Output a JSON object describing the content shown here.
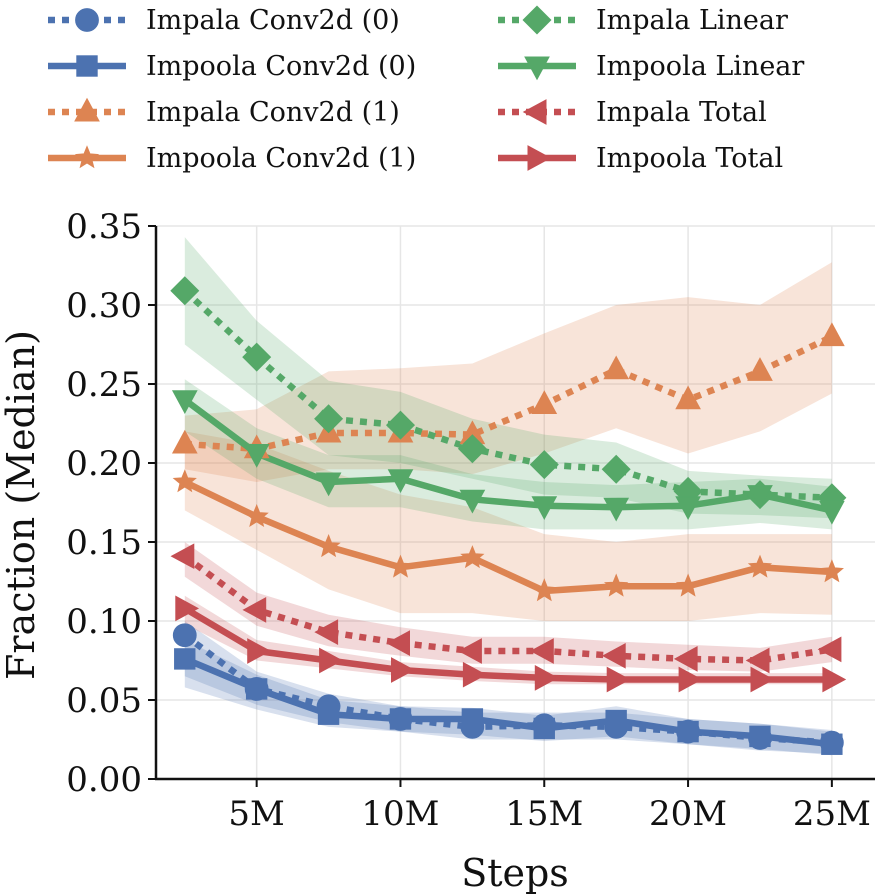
{
  "chart_data": {
    "type": "line",
    "title": "",
    "xlabel": "Steps",
    "ylabel": "Fraction (Median)",
    "xlim": [
      1.5,
      26.5
    ],
    "ylim": [
      0.0,
      0.35
    ],
    "x_ticks": [
      5,
      10,
      15,
      20,
      25
    ],
    "x_tick_labels": [
      "5M",
      "10M",
      "15M",
      "20M",
      "25M"
    ],
    "y_ticks": [
      0.0,
      0.05,
      0.1,
      0.15,
      0.2,
      0.25,
      0.3,
      0.35
    ],
    "y_tick_labels": [
      "0.00",
      "0.05",
      "0.10",
      "0.15",
      "0.20",
      "0.25",
      "0.30",
      "0.35"
    ],
    "grid": true,
    "legend_position": "top",
    "x": [
      2.5,
      5,
      7.5,
      10,
      12.5,
      15,
      17.5,
      20,
      22.5,
      25
    ],
    "series": [
      {
        "name": "Impala Conv2d (0)",
        "color": "#4c72b0",
        "linestyle": "dotted",
        "marker": "circle",
        "values": [
          0.091,
          0.057,
          0.046,
          0.038,
          0.033,
          0.034,
          0.033,
          0.03,
          0.026,
          0.023
        ],
        "band_low": [
          0.065,
          0.047,
          0.036,
          0.03,
          0.025,
          0.025,
          0.025,
          0.022,
          0.018,
          0.016
        ],
        "band_high": [
          0.1,
          0.068,
          0.054,
          0.046,
          0.042,
          0.042,
          0.042,
          0.038,
          0.035,
          0.031
        ]
      },
      {
        "name": "Impoola Conv2d (0)",
        "color": "#4c72b0",
        "linestyle": "solid",
        "marker": "square",
        "values": [
          0.076,
          0.057,
          0.041,
          0.038,
          0.038,
          0.032,
          0.037,
          0.03,
          0.027,
          0.022
        ],
        "band_low": [
          0.058,
          0.044,
          0.033,
          0.03,
          0.028,
          0.024,
          0.027,
          0.022,
          0.019,
          0.015
        ],
        "band_high": [
          0.088,
          0.066,
          0.05,
          0.046,
          0.045,
          0.04,
          0.046,
          0.038,
          0.035,
          0.03
        ]
      },
      {
        "name": "Impala Conv2d (1)",
        "color": "#dd8452",
        "linestyle": "dotted",
        "marker": "triangle-up",
        "values": [
          0.212,
          0.209,
          0.219,
          0.219,
          0.218,
          0.237,
          0.259,
          0.24,
          0.258,
          0.28
        ],
        "band_low": [
          0.196,
          0.188,
          0.196,
          0.196,
          0.193,
          0.206,
          0.222,
          0.206,
          0.22,
          0.244
        ],
        "band_high": [
          0.23,
          0.234,
          0.258,
          0.26,
          0.263,
          0.282,
          0.3,
          0.305,
          0.3,
          0.327
        ]
      },
      {
        "name": "Impoola Conv2d (1)",
        "color": "#dd8452",
        "linestyle": "solid",
        "marker": "star",
        "values": [
          0.188,
          0.166,
          0.147,
          0.134,
          0.14,
          0.119,
          0.122,
          0.122,
          0.134,
          0.131
        ],
        "band_low": [
          0.17,
          0.145,
          0.12,
          0.105,
          0.105,
          0.1,
          0.1,
          0.1,
          0.105,
          0.104
        ],
        "band_high": [
          0.22,
          0.212,
          0.195,
          0.18,
          0.172,
          0.155,
          0.15,
          0.155,
          0.155,
          0.155
        ]
      },
      {
        "name": "Impala Linear",
        "color": "#55a868",
        "linestyle": "dotted",
        "marker": "diamond",
        "values": [
          0.309,
          0.267,
          0.228,
          0.224,
          0.209,
          0.199,
          0.196,
          0.182,
          0.18,
          0.178
        ],
        "band_low": [
          0.275,
          0.24,
          0.205,
          0.2,
          0.19,
          0.18,
          0.178,
          0.168,
          0.167,
          0.165
        ],
        "band_high": [
          0.343,
          0.29,
          0.252,
          0.245,
          0.228,
          0.218,
          0.213,
          0.195,
          0.192,
          0.19
        ]
      },
      {
        "name": "Impoola Linear",
        "color": "#55a868",
        "linestyle": "solid",
        "marker": "triangle-down",
        "values": [
          0.24,
          0.206,
          0.188,
          0.19,
          0.177,
          0.173,
          0.172,
          0.173,
          0.18,
          0.17
        ],
        "band_low": [
          0.22,
          0.19,
          0.172,
          0.172,
          0.163,
          0.158,
          0.158,
          0.158,
          0.162,
          0.158
        ],
        "band_high": [
          0.253,
          0.222,
          0.205,
          0.205,
          0.193,
          0.188,
          0.186,
          0.188,
          0.19,
          0.185
        ]
      },
      {
        "name": "Impala Total",
        "color": "#c44e52",
        "linestyle": "dotted",
        "marker": "triangle-left",
        "values": [
          0.141,
          0.107,
          0.093,
          0.086,
          0.081,
          0.081,
          0.078,
          0.076,
          0.075,
          0.082
        ],
        "band_low": [
          0.128,
          0.097,
          0.084,
          0.078,
          0.073,
          0.073,
          0.071,
          0.069,
          0.068,
          0.074
        ],
        "band_high": [
          0.15,
          0.118,
          0.104,
          0.096,
          0.09,
          0.09,
          0.087,
          0.085,
          0.083,
          0.09
        ]
      },
      {
        "name": "Impoola Total",
        "color": "#c44e52",
        "linestyle": "solid",
        "marker": "triangle-right",
        "values": [
          0.108,
          0.081,
          0.075,
          0.069,
          0.066,
          0.064,
          0.063,
          0.063,
          0.063,
          0.063
        ],
        "band_low": [
          0.098,
          0.075,
          0.07,
          0.065,
          0.062,
          0.06,
          0.06,
          0.06,
          0.06,
          0.06
        ],
        "band_high": [
          0.116,
          0.088,
          0.081,
          0.074,
          0.071,
          0.068,
          0.067,
          0.067,
          0.067,
          0.067
        ]
      }
    ]
  }
}
